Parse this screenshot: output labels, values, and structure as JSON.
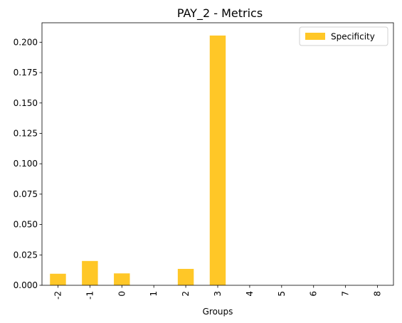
{
  "chart_data": {
    "type": "bar",
    "title": "PAY_2 - Metrics",
    "xlabel": "Groups",
    "ylabel": "",
    "categories": [
      "-2",
      "-1",
      "0",
      "1",
      "2",
      "3",
      "4",
      "5",
      "6",
      "7",
      "8"
    ],
    "series": [
      {
        "name": "Specificity",
        "color": "#ffc727",
        "values": [
          0.0095,
          0.02,
          0.0098,
          0.0,
          0.0135,
          0.2055,
          0.0,
          0.0,
          0.0,
          0.0,
          0.0
        ]
      }
    ],
    "ylim": [
      0,
      0.216
    ],
    "yticks": [
      "0.000",
      "0.025",
      "0.050",
      "0.075",
      "0.100",
      "0.125",
      "0.150",
      "0.175",
      "0.200"
    ],
    "grid": false,
    "legend_position": "top-right"
  }
}
